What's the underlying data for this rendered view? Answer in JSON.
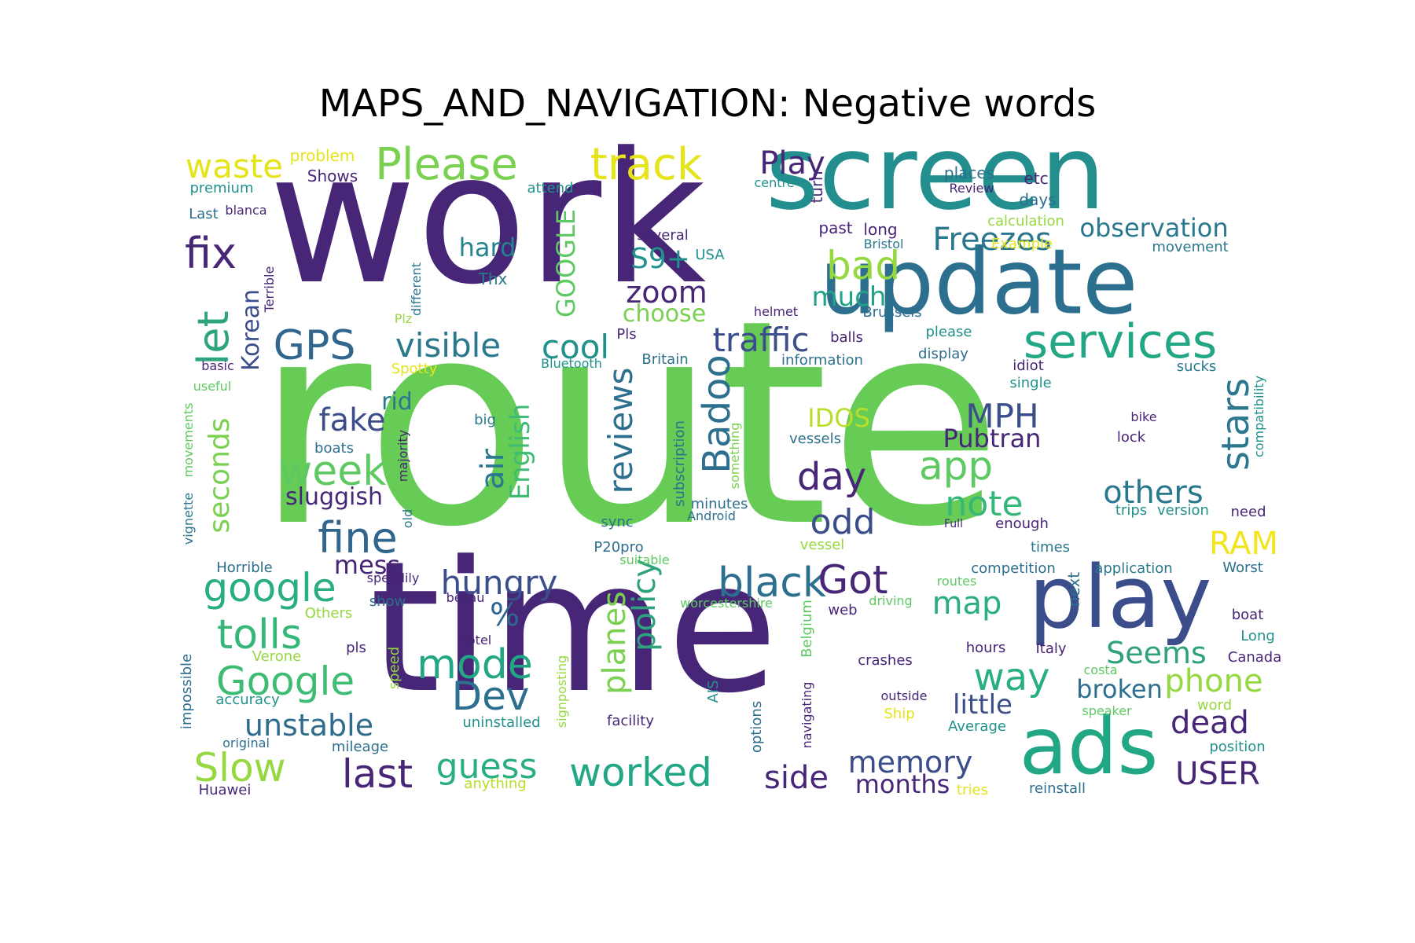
{
  "title": "MAPS_AND_NAVIGATION: Negative words",
  "words": [
    {
      "text": "route",
      "color": "#66cc55",
      "vertical": false
    },
    {
      "text": "work",
      "color": "#472577",
      "vertical": false
    },
    {
      "text": "time",
      "color": "#472577",
      "vertical": false
    },
    {
      "text": "screen",
      "color": "#228e8d",
      "vertical": false
    },
    {
      "text": "update",
      "color": "#2c6f8e",
      "vertical": false
    },
    {
      "text": "play",
      "color": "#3b4d8a",
      "vertical": false
    },
    {
      "text": "ads",
      "color": "#22a784",
      "vertical": false
    },
    {
      "text": "services",
      "color": "#22a784",
      "vertical": false
    },
    {
      "text": "Please",
      "color": "#7ad151",
      "vertical": false
    },
    {
      "text": "track",
      "color": "#e5e419",
      "vertical": false
    },
    {
      "text": "waste",
      "color": "#e5e419",
      "vertical": false
    },
    {
      "text": "fix",
      "color": "#472577",
      "vertical": false
    },
    {
      "text": "let",
      "color": "#2da37e",
      "vertical": true
    },
    {
      "text": "GPS",
      "color": "#31668e",
      "vertical": false
    },
    {
      "text": "visible",
      "color": "#2a788e",
      "vertical": false
    },
    {
      "text": "cool",
      "color": "#21918c",
      "vertical": false
    },
    {
      "text": "traffic",
      "color": "#3b4d8a",
      "vertical": false
    },
    {
      "text": "bad",
      "color": "#95d840",
      "vertical": false
    },
    {
      "text": "Freezes",
      "color": "#2a788e",
      "vertical": false
    },
    {
      "text": "observation",
      "color": "#2a788e",
      "vertical": false
    },
    {
      "text": "Play",
      "color": "#472577",
      "vertical": false
    },
    {
      "text": "S9+",
      "color": "#21918c",
      "vertical": false
    },
    {
      "text": "zoom",
      "color": "#472577",
      "vertical": false
    },
    {
      "text": "choose",
      "color": "#7ad151",
      "vertical": false
    },
    {
      "text": "hard",
      "color": "#26828e",
      "vertical": false
    },
    {
      "text": "GOOGLE",
      "color": "#5ec962",
      "vertical": true
    },
    {
      "text": "much",
      "color": "#20a386",
      "vertical": false
    },
    {
      "text": "Korean",
      "color": "#3b4d8a",
      "vertical": true
    },
    {
      "text": "fake",
      "color": "#3b4d8a",
      "vertical": false
    },
    {
      "text": "week",
      "color": "#5ec962",
      "vertical": false
    },
    {
      "text": "seconds",
      "color": "#7ad151",
      "vertical": true
    },
    {
      "text": "sluggish",
      "color": "#472577",
      "vertical": false
    },
    {
      "text": "fine",
      "color": "#31668e",
      "vertical": false
    },
    {
      "text": "google",
      "color": "#28ae80",
      "vertical": false
    },
    {
      "text": "tolls",
      "color": "#35b779",
      "vertical": false
    },
    {
      "text": "Google",
      "color": "#3fbc73",
      "vertical": false
    },
    {
      "text": "unstable",
      "color": "#2f6c8e",
      "vertical": false
    },
    {
      "text": "Slow",
      "color": "#95d840",
      "vertical": false
    },
    {
      "text": "last",
      "color": "#472577",
      "vertical": false
    },
    {
      "text": "rid",
      "color": "#2a788e",
      "vertical": false
    },
    {
      "text": "air",
      "color": "#2a788e",
      "vertical": true
    },
    {
      "text": "English",
      "color": "#3fbc73",
      "vertical": true
    },
    {
      "text": "reviews",
      "color": "#2c6f8e",
      "vertical": true
    },
    {
      "text": "Badoo",
      "color": "#2c6f8e",
      "vertical": true
    },
    {
      "text": "day",
      "color": "#472577",
      "vertical": false
    },
    {
      "text": "odd",
      "color": "#3b4d8a",
      "vertical": false
    },
    {
      "text": "IDOS",
      "color": "#b8de29",
      "vertical": false
    },
    {
      "text": "MPH",
      "color": "#3b4d8a",
      "vertical": false
    },
    {
      "text": "Pubtran",
      "color": "#472577",
      "vertical": false
    },
    {
      "text": "app",
      "color": "#5ec962",
      "vertical": false
    },
    {
      "text": "note",
      "color": "#35b779",
      "vertical": false
    },
    {
      "text": "stars",
      "color": "#2a788e",
      "vertical": true
    },
    {
      "text": "others",
      "color": "#2a788e",
      "vertical": false
    },
    {
      "text": "RAM",
      "color": "#f2e51d",
      "vertical": false
    },
    {
      "text": "hungry",
      "color": "#3b4d8a",
      "vertical": false
    },
    {
      "text": "%",
      "color": "#31668e",
      "vertical": false
    },
    {
      "text": "mode",
      "color": "#22a784",
      "vertical": false
    },
    {
      "text": "Dev",
      "color": "#2c6f8e",
      "vertical": false
    },
    {
      "text": "planes",
      "color": "#7ad151",
      "vertical": true
    },
    {
      "text": "policy",
      "color": "#2ea27d",
      "vertical": true
    },
    {
      "text": "black",
      "color": "#2c6f8e",
      "vertical": false
    },
    {
      "text": "Got",
      "color": "#472577",
      "vertical": false
    },
    {
      "text": "map",
      "color": "#29af7f",
      "vertical": false
    },
    {
      "text": "way",
      "color": "#29af7f",
      "vertical": false
    },
    {
      "text": "Seems",
      "color": "#2ea27d",
      "vertical": false
    },
    {
      "text": "phone",
      "color": "#95d840",
      "vertical": false
    },
    {
      "text": "little",
      "color": "#3b4d8a",
      "vertical": false
    },
    {
      "text": "broken",
      "color": "#2c6f8e",
      "vertical": false
    },
    {
      "text": "dead",
      "color": "#472577",
      "vertical": false
    },
    {
      "text": "guess",
      "color": "#28ae80",
      "vertical": false
    },
    {
      "text": "worked",
      "color": "#22a784",
      "vertical": false
    },
    {
      "text": "side",
      "color": "#472577",
      "vertical": false
    },
    {
      "text": "memory",
      "color": "#3b4d8a",
      "vertical": false
    },
    {
      "text": "months",
      "color": "#472577",
      "vertical": false
    },
    {
      "text": "USER",
      "color": "#472577",
      "vertical": false
    },
    {
      "text": "mess",
      "color": "#472577",
      "vertical": false
    },
    {
      "text": "problem",
      "color": "#e5e419",
      "vertical": false
    },
    {
      "text": "Shows",
      "color": "#472577",
      "vertical": false
    },
    {
      "text": "premium",
      "color": "#21918c",
      "vertical": false
    },
    {
      "text": "Last",
      "color": "#2c6f8e",
      "vertical": false
    },
    {
      "text": "blanca",
      "color": "#472577",
      "vertical": false
    },
    {
      "text": "attend",
      "color": "#21918c",
      "vertical": false
    },
    {
      "text": "several",
      "color": "#472577",
      "vertical": false
    },
    {
      "text": "USA",
      "color": "#21918c",
      "vertical": false
    },
    {
      "text": "Thx",
      "color": "#2a788e",
      "vertical": false
    },
    {
      "text": "turn",
      "color": "#472577",
      "vertical": true
    },
    {
      "text": "places",
      "color": "#2c6f8e",
      "vertical": false
    },
    {
      "text": "etc",
      "color": "#472577",
      "vertical": false
    },
    {
      "text": "Review",
      "color": "#472577",
      "vertical": false
    },
    {
      "text": "centre",
      "color": "#21918c",
      "vertical": false
    },
    {
      "text": "days",
      "color": "#2c6f8e",
      "vertical": false
    },
    {
      "text": "calculation",
      "color": "#95d840",
      "vertical": false
    },
    {
      "text": "past",
      "color": "#472577",
      "vertical": false
    },
    {
      "text": "long",
      "color": "#472577",
      "vertical": false
    },
    {
      "text": "Bristol",
      "color": "#2a788e",
      "vertical": false
    },
    {
      "text": "Example",
      "color": "#e5e419",
      "vertical": false
    },
    {
      "text": "movement",
      "color": "#2a788e",
      "vertical": false
    },
    {
      "text": "Terrible",
      "color": "#472577",
      "vertical": true
    },
    {
      "text": "different",
      "color": "#2a788e",
      "vertical": true
    },
    {
      "text": "Plz",
      "color": "#95d840",
      "vertical": false
    },
    {
      "text": "helmet",
      "color": "#472577",
      "vertical": false
    },
    {
      "text": "Brussels",
      "color": "#2c6f8e",
      "vertical": false
    },
    {
      "text": "please",
      "color": "#21918c",
      "vertical": false
    },
    {
      "text": "Pls",
      "color": "#472577",
      "vertical": false
    },
    {
      "text": "balls",
      "color": "#472577",
      "vertical": false
    },
    {
      "text": "display",
      "color": "#2c6f8e",
      "vertical": false
    },
    {
      "text": "basic",
      "color": "#472577",
      "vertical": false
    },
    {
      "text": "Spotty",
      "color": "#e5e419",
      "vertical": false
    },
    {
      "text": "Bluetooth",
      "color": "#21918c",
      "vertical": false
    },
    {
      "text": "Britain",
      "color": "#2c6f8e",
      "vertical": false
    },
    {
      "text": "information",
      "color": "#2c6f8e",
      "vertical": false
    },
    {
      "text": "idiot",
      "color": "#472577",
      "vertical": false
    },
    {
      "text": "single",
      "color": "#21918c",
      "vertical": false
    },
    {
      "text": "sucks",
      "color": "#2a788e",
      "vertical": false
    },
    {
      "text": "compatibility",
      "color": "#21918c",
      "vertical": true
    },
    {
      "text": "useful",
      "color": "#5ec962",
      "vertical": false
    },
    {
      "text": "movements",
      "color": "#5ec962",
      "vertical": true
    },
    {
      "text": "vignette",
      "color": "#2a788e",
      "vertical": true
    },
    {
      "text": "majority",
      "color": "#472577",
      "vertical": true
    },
    {
      "text": "old",
      "color": "#2a788e",
      "vertical": true
    },
    {
      "text": "boats",
      "color": "#2c6f8e",
      "vertical": false
    },
    {
      "text": "big",
      "color": "#2a788e",
      "vertical": false
    },
    {
      "text": "subscription",
      "color": "#2c6f8e",
      "vertical": true
    },
    {
      "text": "something",
      "color": "#7ad151",
      "vertical": true
    },
    {
      "text": "minutes",
      "color": "#2c6f8e",
      "vertical": false
    },
    {
      "text": "Android",
      "color": "#2c6f8e",
      "vertical": false
    },
    {
      "text": "vessels",
      "color": "#2c6f8e",
      "vertical": false
    },
    {
      "text": "bike",
      "color": "#472577",
      "vertical": false
    },
    {
      "text": "lock",
      "color": "#472577",
      "vertical": false
    },
    {
      "text": "need",
      "color": "#472577",
      "vertical": false
    },
    {
      "text": "trips",
      "color": "#21918c",
      "vertical": false
    },
    {
      "text": "version",
      "color": "#21918c",
      "vertical": false
    },
    {
      "text": "sync",
      "color": "#2c6f8e",
      "vertical": false
    },
    {
      "text": "Full",
      "color": "#472577",
      "vertical": false
    },
    {
      "text": "enough",
      "color": "#472577",
      "vertical": false
    },
    {
      "text": "P20pro",
      "color": "#2c6f8e",
      "vertical": false
    },
    {
      "text": "vessel",
      "color": "#95d840",
      "vertical": false
    },
    {
      "text": "times",
      "color": "#2a788e",
      "vertical": false
    },
    {
      "text": "suitable",
      "color": "#5ec962",
      "vertical": false
    },
    {
      "text": "Horrible",
      "color": "#2c6f8e",
      "vertical": false
    },
    {
      "text": "speedily",
      "color": "#472577",
      "vertical": false
    },
    {
      "text": "competition",
      "color": "#2c6f8e",
      "vertical": false
    },
    {
      "text": "application",
      "color": "#2a788e",
      "vertical": false
    },
    {
      "text": "Worst",
      "color": "#2c6f8e",
      "vertical": false
    },
    {
      "text": "show",
      "color": "#2c6f8e",
      "vertical": false
    },
    {
      "text": "becau",
      "color": "#472577",
      "vertical": false
    },
    {
      "text": "worcestershire",
      "color": "#5ec962",
      "vertical": false
    },
    {
      "text": "routes",
      "color": "#5ec962",
      "vertical": false
    },
    {
      "text": "driving",
      "color": "#5ec962",
      "vertical": false
    },
    {
      "text": "next",
      "color": "#2c6f8e",
      "vertical": true
    },
    {
      "text": "Others",
      "color": "#95d840",
      "vertical": false
    },
    {
      "text": "web",
      "color": "#472577",
      "vertical": false
    },
    {
      "text": "Belgium",
      "color": "#5ec962",
      "vertical": true
    },
    {
      "text": "boat",
      "color": "#472577",
      "vertical": false
    },
    {
      "text": "Long",
      "color": "#21918c",
      "vertical": false
    },
    {
      "text": "hotel",
      "color": "#472577",
      "vertical": false
    },
    {
      "text": "pls",
      "color": "#472577",
      "vertical": false
    },
    {
      "text": "hours",
      "color": "#472577",
      "vertical": false
    },
    {
      "text": "Italy",
      "color": "#472577",
      "vertical": false
    },
    {
      "text": "Canada",
      "color": "#472577",
      "vertical": false
    },
    {
      "text": "Verone",
      "color": "#95d840",
      "vertical": false
    },
    {
      "text": "speed",
      "color": "#95d840",
      "vertical": true
    },
    {
      "text": "signposting",
      "color": "#95d840",
      "vertical": true
    },
    {
      "text": "crashes",
      "color": "#472577",
      "vertical": false
    },
    {
      "text": "costa",
      "color": "#5ec962",
      "vertical": false
    },
    {
      "text": "accuracy",
      "color": "#21918c",
      "vertical": false
    },
    {
      "text": "impossible",
      "color": "#2c6f8e",
      "vertical": true
    },
    {
      "text": "AIS",
      "color": "#21918c",
      "vertical": true
    },
    {
      "text": "navigating",
      "color": "#472577",
      "vertical": true
    },
    {
      "text": "outside",
      "color": "#472577",
      "vertical": false
    },
    {
      "text": "Ship",
      "color": "#e5e419",
      "vertical": false
    },
    {
      "text": "speaker",
      "color": "#5ec962",
      "vertical": false
    },
    {
      "text": "word",
      "color": "#95d840",
      "vertical": false
    },
    {
      "text": "Average",
      "color": "#21918c",
      "vertical": false
    },
    {
      "text": "uninstalled",
      "color": "#21918c",
      "vertical": false
    },
    {
      "text": "facility",
      "color": "#472577",
      "vertical": false
    },
    {
      "text": "options",
      "color": "#2c6f8e",
      "vertical": true
    },
    {
      "text": "original",
      "color": "#2c6f8e",
      "vertical": false
    },
    {
      "text": "mileage",
      "color": "#2c6f8e",
      "vertical": false
    },
    {
      "text": "position",
      "color": "#21918c",
      "vertical": false
    },
    {
      "text": "anything",
      "color": "#b8de29",
      "vertical": false
    },
    {
      "text": "Huawei",
      "color": "#472577",
      "vertical": false
    },
    {
      "text": "tries",
      "color": "#e5e419",
      "vertical": false
    },
    {
      "text": "reinstall",
      "color": "#2c6f8e",
      "vertical": false
    }
  ]
}
